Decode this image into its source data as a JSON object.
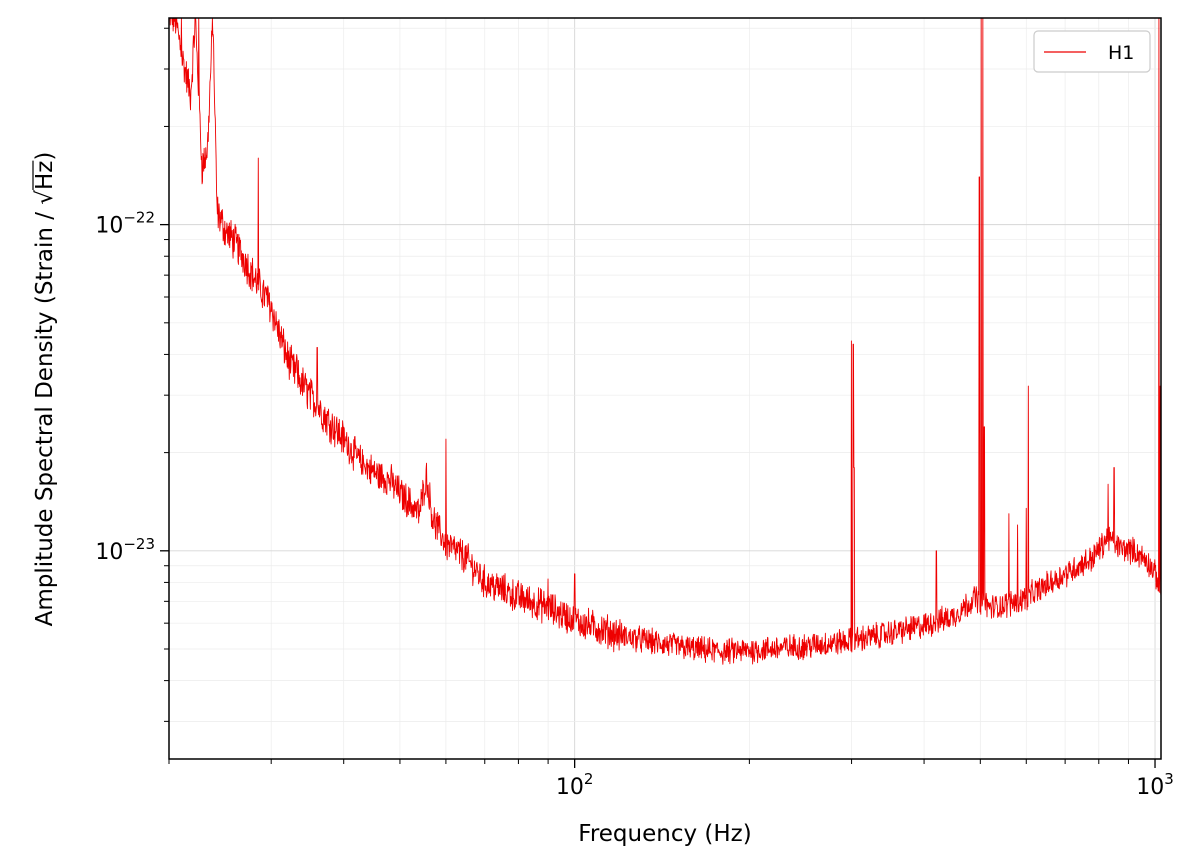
{
  "chart_data": {
    "type": "line",
    "title": "",
    "xlabel": "Frequency (Hz)",
    "ylabel_prefix": "Amplitude Spectral Density (Strain / ",
    "ylabel_radicand": "Hz",
    "ylabel_suffix": ")",
    "xscale": "log",
    "yscale": "log",
    "xlim": [
      20,
      1024
    ],
    "ylim": [
      2.3e-24,
      4.3e-22
    ],
    "grid": true,
    "legend_position": "top-right",
    "x_ticks": [
      {
        "value": 100,
        "base": "10",
        "exp": "2"
      },
      {
        "value": 1000,
        "base": "10",
        "exp": "3"
      }
    ],
    "y_ticks": [
      {
        "value": 1e-22,
        "base": "10",
        "exp": "−22"
      },
      {
        "value": 1e-23,
        "base": "10",
        "exp": "−23"
      }
    ],
    "series": [
      {
        "name": "H1",
        "color": "#ee0000",
        "baseline": [
          [
            20.5,
            4.3e-22
          ],
          [
            21.2,
            3.1e-22
          ],
          [
            21.8,
            2.5e-22
          ],
          [
            22.2,
            4.3e-22
          ],
          [
            22.8,
            1.5e-22
          ],
          [
            23.3,
            1.7e-22
          ],
          [
            23.8,
            4.3e-22
          ],
          [
            24.2,
            1.1e-22
          ],
          [
            25,
            9.6e-23
          ],
          [
            26,
            8.8e-23
          ],
          [
            27,
            7.8e-23
          ],
          [
            28,
            6.9e-23
          ],
          [
            29,
            6.2e-23
          ],
          [
            30,
            5.6e-23
          ],
          [
            31,
            4.6e-23
          ],
          [
            32,
            3.9e-23
          ],
          [
            33,
            3.5e-23
          ],
          [
            35,
            3e-23
          ],
          [
            37,
            2.6e-23
          ],
          [
            40,
            2.2e-23
          ],
          [
            43,
            1.85e-23
          ],
          [
            46,
            1.7e-23
          ],
          [
            48,
            1.65e-23
          ],
          [
            50,
            1.5e-23
          ],
          [
            52,
            1.4e-23
          ],
          [
            54,
            1.3e-23
          ],
          [
            55.5,
            1.7e-23
          ],
          [
            57,
            1.25e-23
          ],
          [
            60,
            1.05e-23
          ],
          [
            65,
            9.5e-24
          ],
          [
            70,
            8e-24
          ],
          [
            75,
            7.6e-24
          ],
          [
            80,
            7.2e-24
          ],
          [
            90,
            6.7e-24
          ],
          [
            100,
            6.1e-24
          ],
          [
            120,
            5.5e-24
          ],
          [
            140,
            5.2e-24
          ],
          [
            160,
            5e-24
          ],
          [
            180,
            4.9e-24
          ],
          [
            200,
            4.95e-24
          ],
          [
            250,
            5.1e-24
          ],
          [
            300,
            5.3e-24
          ],
          [
            350,
            5.6e-24
          ],
          [
            400,
            5.9e-24
          ],
          [
            450,
            6.3e-24
          ],
          [
            490,
            7.2e-24
          ],
          [
            520,
            6.7e-24
          ],
          [
            550,
            6.8e-24
          ],
          [
            600,
            7.2e-24
          ],
          [
            700,
            8.5e-24
          ],
          [
            780,
            9.5e-24
          ],
          [
            830,
            1.1e-23
          ],
          [
            870,
            1.02e-23
          ],
          [
            920,
            1e-23
          ],
          [
            970,
            9.3e-24
          ],
          [
            1000,
            8.5e-24
          ],
          [
            1024,
            7.5e-24
          ]
        ],
        "lines": [
          [
            21,
            4.3e-22
          ],
          [
            22.5,
            4.3e-22
          ],
          [
            28.5,
            1.6e-22
          ],
          [
            29.5,
            6.4e-23
          ],
          [
            33.2,
            4e-23
          ],
          [
            36,
            4.2e-23
          ],
          [
            40,
            2.3e-23
          ],
          [
            41.2,
            2e-23
          ],
          [
            43.5,
            1.8e-23
          ],
          [
            60,
            2.2e-23
          ],
          [
            90,
            8.2e-24
          ],
          [
            100,
            8.5e-24
          ],
          [
            300,
            4.4e-23
          ],
          [
            302,
            4.3e-23
          ],
          [
            303,
            1.8e-23
          ],
          [
            420,
            1e-23
          ],
          [
            498,
            1.4e-22
          ],
          [
            502,
            4.3e-22
          ],
          [
            505,
            4.3e-22
          ],
          [
            508,
            2.4e-23
          ],
          [
            560,
            1.3e-23
          ],
          [
            580,
            1.2e-23
          ],
          [
            600,
            1.35e-23
          ],
          [
            605,
            3.2e-23
          ],
          [
            830,
            1.6e-23
          ],
          [
            850,
            1.8e-23
          ],
          [
            1015,
            4.3e-22
          ],
          [
            1020,
            3.2e-23
          ]
        ]
      }
    ]
  }
}
